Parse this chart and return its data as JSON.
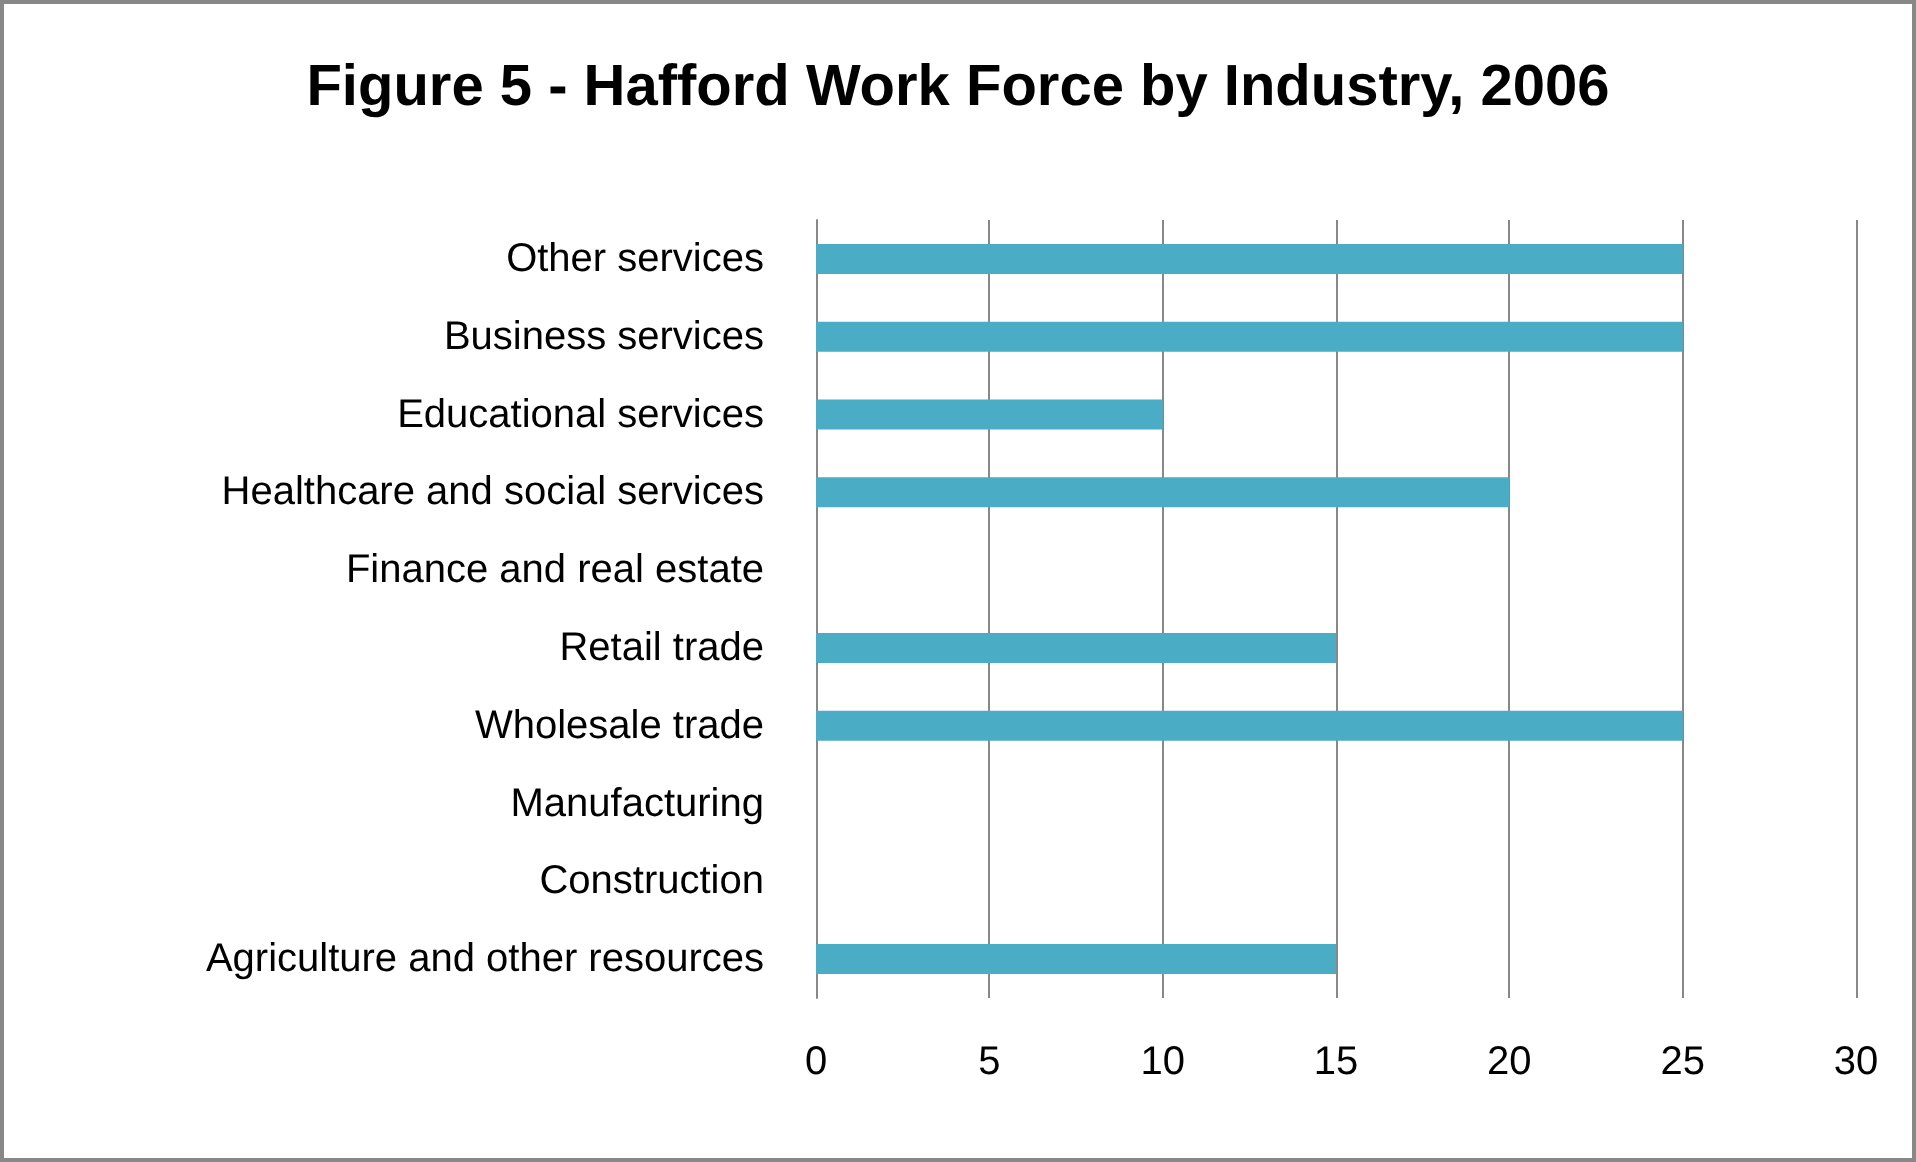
{
  "chart_data": {
    "type": "bar",
    "orientation": "horizontal",
    "title": "Figure 5 - Hafford Work Force by Industry, 2006",
    "categories": [
      "Other services",
      "Business services",
      "Educational services",
      "Healthcare and social services",
      "Finance and real estate",
      "Retail trade",
      "Wholesale trade",
      "Manufacturing",
      "Construction",
      "Agriculture and other resources"
    ],
    "values": [
      25,
      25,
      10,
      20,
      0,
      15,
      25,
      0,
      0,
      15
    ],
    "color": "#4bacc6",
    "xlim": [
      0,
      30
    ],
    "xticks": [
      0,
      5,
      10,
      15,
      20,
      25,
      30
    ],
    "grid": "x"
  }
}
